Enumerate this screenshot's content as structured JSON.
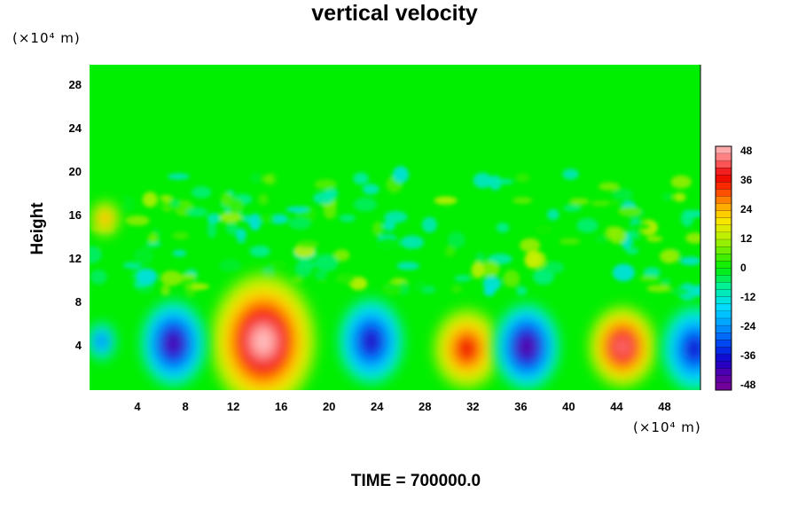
{
  "chart_data": {
    "type": "heatmap",
    "title": "vertical velocity",
    "xlabel": "",
    "ylabel": "Height",
    "x_unit_label": "(×10⁴ m)",
    "y_unit_label": "(×10⁴ m)",
    "xlim": [
      0,
      51
    ],
    "ylim": [
      0,
      30
    ],
    "x_ticks": [
      4,
      8,
      12,
      16,
      20,
      24,
      28,
      32,
      36,
      40,
      44,
      48
    ],
    "y_ticks": [
      4,
      8,
      12,
      16,
      20,
      24,
      28
    ],
    "colorbar": {
      "range": [
        -50,
        50
      ],
      "tick_values": [
        48,
        36,
        24,
        12,
        0,
        -12,
        -24,
        -36,
        -48
      ],
      "tick_labels": [
        "48",
        "36",
        "24",
        "12",
        "0",
        "-12",
        "-24",
        "-36",
        "-48"
      ]
    },
    "features": [
      {
        "label": "updraft core",
        "x": 14.5,
        "y": 4.5,
        "peak": 50
      },
      {
        "label": "updraft",
        "x": 31.5,
        "y": 3.8,
        "peak": 38
      },
      {
        "label": "updraft",
        "x": 44.5,
        "y": 4.0,
        "peak": 45
      },
      {
        "label": "updraft",
        "x": 1.3,
        "y": 15.8,
        "peak": 28
      },
      {
        "label": "downdraft",
        "x": 7.0,
        "y": 4.3,
        "peak": -44
      },
      {
        "label": "downdraft",
        "x": 23.5,
        "y": 4.5,
        "peak": -40
      },
      {
        "label": "downdraft",
        "x": 36.5,
        "y": 4.0,
        "peak": -46
      },
      {
        "label": "downdraft",
        "x": 50.5,
        "y": 3.8,
        "peak": -38
      },
      {
        "label": "downdraft",
        "x": 1.0,
        "y": 4.5,
        "peak": -30
      }
    ],
    "annotation": "TIME = 700000.0"
  }
}
